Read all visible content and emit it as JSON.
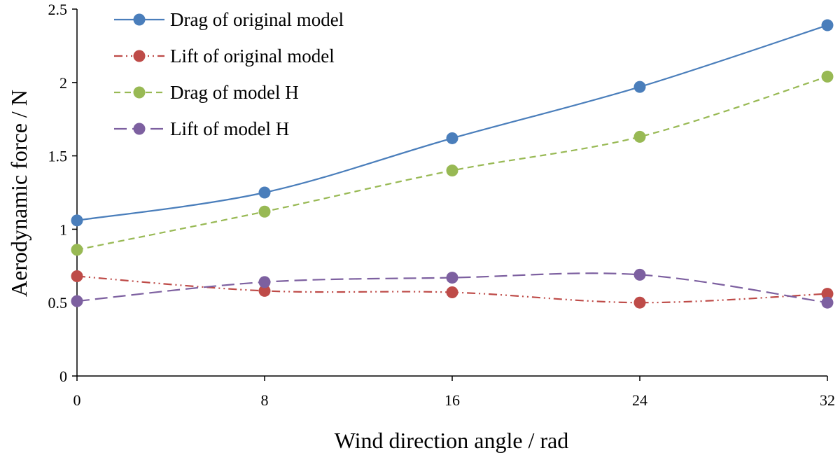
{
  "chart_data": {
    "type": "line",
    "xlabel": "Wind direction angle / rad",
    "ylabel": "Aerodynamic force / N",
    "x": [
      0,
      8,
      16,
      24,
      32
    ],
    "xticks": [
      "0",
      "8",
      "16",
      "24",
      "32"
    ],
    "yticks": [
      "0",
      "0.5",
      "1",
      "1.5",
      "2",
      "2.5"
    ],
    "xlim": [
      0,
      32
    ],
    "ylim": [
      0,
      2.5
    ],
    "grid": false,
    "legend_position": "top-left",
    "series": [
      {
        "name": "Drag of original model",
        "values": [
          1.06,
          1.25,
          1.62,
          1.97,
          2.39
        ],
        "color": "#4a7ebb",
        "dash": "solid"
      },
      {
        "name": "Lift of original model",
        "values": [
          0.68,
          0.58,
          0.57,
          0.5,
          0.56
        ],
        "color": "#be4b48",
        "dash": "dash-dot-dot"
      },
      {
        "name": "Drag of model H",
        "values": [
          0.86,
          1.12,
          1.4,
          1.63,
          2.04
        ],
        "color": "#98b954",
        "dash": "dashed"
      },
      {
        "name": "Lift of model H",
        "values": [
          0.51,
          0.64,
          0.67,
          0.69,
          0.5
        ],
        "color": "#7d60a0",
        "dash": "long-dash"
      }
    ]
  }
}
